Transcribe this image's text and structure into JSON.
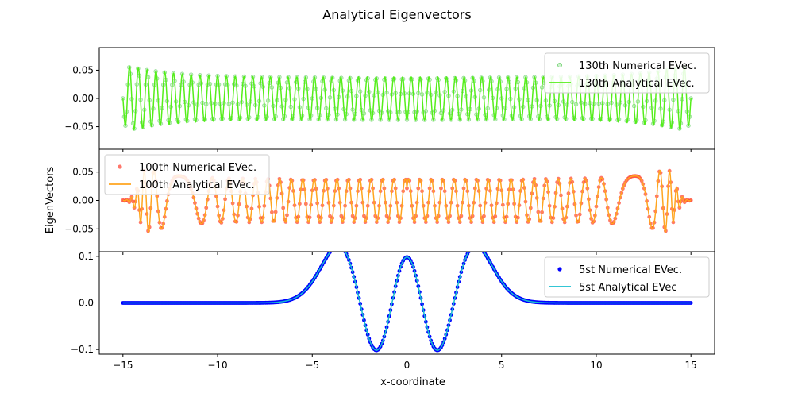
{
  "figure": {
    "title": "Analytical Eigenvectors",
    "xlabel": "x-coordinate",
    "ylabel": "EigenVectors"
  },
  "chart_data": [
    {
      "type": "line",
      "id": "top",
      "xlim": [
        -16.25,
        16.25
      ],
      "ylim": [
        -0.09,
        0.09
      ],
      "yticks": [
        -0.05,
        0.0,
        0.05
      ],
      "ytick_labels": [
        "−0.05",
        "0.00",
        "0.05"
      ],
      "xticks": [
        -15,
        -10,
        -5,
        0,
        5,
        10,
        15
      ],
      "legend_position": "top-right",
      "series": [
        {
          "name": "130th Numerical EVec.",
          "kind": "markers",
          "color": "#7cd67c",
          "opacity": 0.6,
          "marker": "hollow-circle"
        },
        {
          "name": "130th Analytical EVec.",
          "kind": "line",
          "color": "#55ee1a"
        }
      ],
      "x_range": [
        -15,
        15
      ],
      "description_params": {
        "half_cycles": 129,
        "edge_amplitude": 0.06,
        "center_amplitude": 0.038
      }
    },
    {
      "type": "line",
      "id": "middle",
      "xlim": [
        -16.25,
        16.25
      ],
      "ylim": [
        -0.09,
        0.09
      ],
      "yticks": [
        -0.05,
        0.0,
        0.05
      ],
      "ytick_labels": [
        "−0.05",
        "0.00",
        "0.05"
      ],
      "xticks": [
        -15,
        -10,
        -5,
        0,
        5,
        10,
        15
      ],
      "legend_position": "top-left",
      "series": [
        {
          "name": "100th Numerical EVec.",
          "kind": "markers",
          "color": "#ff4a3a",
          "opacity": 0.75,
          "marker": "filled-circle"
        },
        {
          "name": "100th Analytical EVec.",
          "kind": "line",
          "color": "#ffa51f"
        }
      ],
      "x_range": [
        -15,
        15
      ],
      "description_params": {
        "half_cycles": 100,
        "edge_amplitude": 0.075,
        "center_amplitude": 0.038
      }
    },
    {
      "type": "line",
      "id": "bottom",
      "xlim": [
        -16.25,
        16.25
      ],
      "ylim": [
        -0.11,
        0.11
      ],
      "yticks": [
        -0.1,
        0.0,
        0.1
      ],
      "ytick_labels": [
        "−0.1",
        "0.0",
        "0.1"
      ],
      "xticks": [
        -15,
        -10,
        -5,
        0,
        5,
        10,
        15
      ],
      "xtick_labels": [
        "−15",
        "−10",
        "−5",
        "0",
        "5",
        "10",
        "15"
      ],
      "legend_position": "top-right",
      "series": [
        {
          "name": "5st Numerical EVec.",
          "kind": "markers",
          "color": "#0000ff",
          "opacity": 1.0,
          "marker": "filled-circle"
        },
        {
          "name": "5st Analytical EVec",
          "kind": "line",
          "color": "#17becf"
        }
      ],
      "x_range": [
        -15,
        15
      ],
      "key_points": [
        {
          "x": -2.4,
          "y": 0.1
        },
        {
          "x": -1.1,
          "y": -0.085
        },
        {
          "x": 0.0,
          "y": 0.08
        },
        {
          "x": 1.1,
          "y": -0.085
        },
        {
          "x": 2.4,
          "y": 0.1
        }
      ]
    }
  ]
}
